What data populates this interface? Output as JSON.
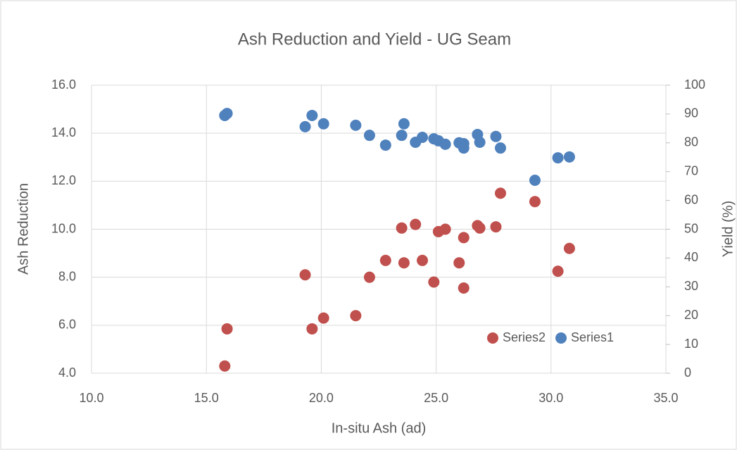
{
  "chart_data": {
    "type": "scatter",
    "title": "Ash Reduction and Yield - UG Seam",
    "x_label": "In-situ Ash (ad)",
    "y_label": "Ash Reduction",
    "y2_label": "Yield (%)",
    "xlim": [
      10,
      35
    ],
    "xticks": [
      {
        "value": 10,
        "label": "10.0"
      },
      {
        "value": 15,
        "label": "15.0"
      },
      {
        "value": 20,
        "label": "20.0"
      },
      {
        "value": 25,
        "label": "25.0"
      },
      {
        "value": 30,
        "label": "30.0"
      },
      {
        "value": 35,
        "label": "35.0"
      }
    ],
    "ylim": [
      4,
      16
    ],
    "yticks": [
      {
        "value": 4,
        "label": "4.0"
      },
      {
        "value": 6,
        "label": "6.0"
      },
      {
        "value": 8,
        "label": "8.0"
      },
      {
        "value": 10,
        "label": "10.0"
      },
      {
        "value": 12,
        "label": "12.0"
      },
      {
        "value": 14,
        "label": "14.0"
      },
      {
        "value": 16,
        "label": "16.0"
      }
    ],
    "y2lim": [
      0,
      100
    ],
    "y2ticks": [
      0,
      10,
      20,
      30,
      40,
      50,
      60,
      70,
      80,
      90,
      100
    ],
    "grid": true,
    "legend": "lower right",
    "series": [
      {
        "name": "Series2",
        "color": "#c0504d",
        "axis": "y",
        "x": [
          15.8,
          15.9,
          19.3,
          19.6,
          20.1,
          21.5,
          22.1,
          22.8,
          23.5,
          23.6,
          24.1,
          24.4,
          24.9,
          25.1,
          25.4,
          26.0,
          26.2,
          26.2,
          26.8,
          26.9,
          27.6,
          27.8,
          29.3,
          30.3,
          30.8
        ],
        "values": [
          4.3,
          5.85,
          8.1,
          5.85,
          6.3,
          6.4,
          8.0,
          8.7,
          10.05,
          8.6,
          10.2,
          8.7,
          7.8,
          9.9,
          10.0,
          8.6,
          9.65,
          7.55,
          10.15,
          10.05,
          10.1,
          11.5,
          11.15,
          8.25,
          9.2
        ]
      },
      {
        "name": "Series1",
        "color": "#4f81bd",
        "axis": "y2",
        "x": [
          15.8,
          15.9,
          19.3,
          19.6,
          20.1,
          21.5,
          22.1,
          22.8,
          23.5,
          23.6,
          24.1,
          24.4,
          24.9,
          25.1,
          25.4,
          26.0,
          26.2,
          26.2,
          26.8,
          26.9,
          27.6,
          27.8,
          29.3,
          30.3,
          30.8
        ],
        "values": [
          89.5,
          90.2,
          85.6,
          89.5,
          86.6,
          86.1,
          82.6,
          79.2,
          82.6,
          86.6,
          80.2,
          81.9,
          81.4,
          80.7,
          79.5,
          80.0,
          79.7,
          78.2,
          82.9,
          80.2,
          82.2,
          78.2,
          67.0,
          74.8,
          75.1
        ]
      }
    ]
  }
}
